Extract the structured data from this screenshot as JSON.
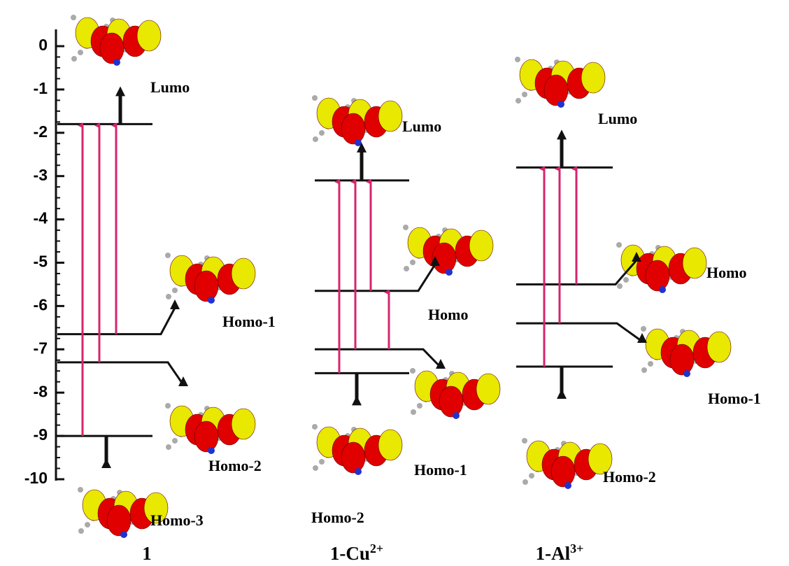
{
  "axis": {
    "ticks": [
      0,
      -1,
      -2,
      -3,
      -4,
      -5,
      -6,
      -7,
      -8,
      -9,
      -10
    ]
  },
  "columns": [
    {
      "name": "1",
      "levels": [
        {
          "label": "Lumo",
          "energy": -1.8
        },
        {
          "label": "Homo-1",
          "energy": -6.65
        },
        {
          "label": "Homo-2",
          "energy": -7.3
        },
        {
          "label": "Homo-3",
          "energy": -9.0
        }
      ]
    },
    {
      "name": "1-Cu",
      "charge": "2+",
      "levels": [
        {
          "label": "Lumo",
          "energy": -3.1
        },
        {
          "label": "Homo",
          "energy": -5.65
        },
        {
          "label": "Homo-1",
          "energy": -7.0
        },
        {
          "label": "Homo-2",
          "energy": -7.55
        }
      ]
    },
    {
      "name": "1-Al",
      "charge": "3+",
      "levels": [
        {
          "label": "Lumo",
          "energy": -2.8
        },
        {
          "label": "Homo",
          "energy": -5.5
        },
        {
          "label": "Homo-1",
          "energy": -6.4
        },
        {
          "label": "Homo-2",
          "energy": -7.4
        }
      ]
    }
  ]
}
